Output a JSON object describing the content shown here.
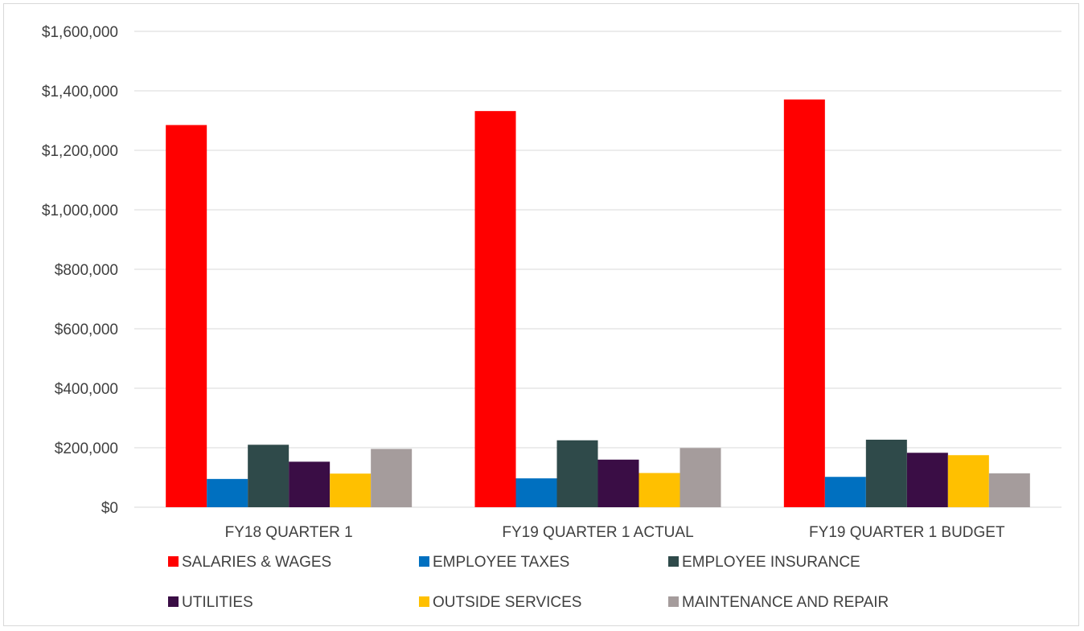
{
  "chart_data": {
    "type": "bar",
    "title": "",
    "xlabel": "",
    "ylabel": "",
    "ylim": [
      0,
      1600000
    ],
    "yticks": [
      0,
      200000,
      400000,
      600000,
      800000,
      1000000,
      1200000,
      1400000,
      1600000
    ],
    "ytick_labels": [
      "$0",
      "$200,000",
      "$400,000",
      "$600,000",
      "$800,000",
      "$1,000,000",
      "$1,200,000",
      "$1,400,000",
      "$1,600,000"
    ],
    "grid": true,
    "legend_position": "bottom",
    "categories": [
      "FY18 QUARTER 1",
      "FY19 QUARTER 1 ACTUAL",
      "FY19 QUARTER 1 BUDGET"
    ],
    "series": [
      {
        "name": "SALARIES & WAGES",
        "color": "#ff0000",
        "values": [
          1285000,
          1332000,
          1371000
        ]
      },
      {
        "name": "EMPLOYEE TAXES",
        "color": "#0070c0",
        "values": [
          95000,
          97000,
          102000
        ]
      },
      {
        "name": "EMPLOYEE INSURANCE",
        "color": "#2f4a4a",
        "values": [
          210000,
          225000,
          227000
        ]
      },
      {
        "name": "UTILITIES",
        "color": "#3a0d45",
        "values": [
          153000,
          160000,
          183000
        ]
      },
      {
        "name": "OUTSIDE SERVICES",
        "color": "#ffc000",
        "values": [
          113000,
          115000,
          175000
        ]
      },
      {
        "name": "MAINTENANCE AND REPAIR",
        "color": "#a59c9c",
        "values": [
          196000,
          199000,
          114000
        ]
      }
    ]
  }
}
